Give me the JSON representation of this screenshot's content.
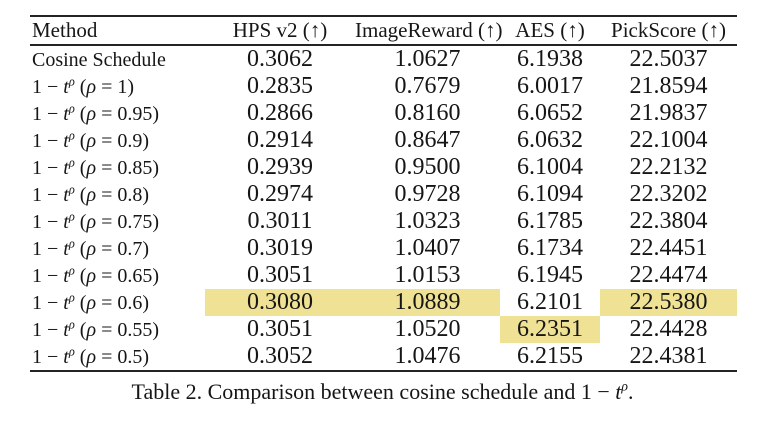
{
  "table": {
    "columns": [
      "Method",
      "HPS v2 (↑)",
      "ImageReward (↑)",
      "AES (↑)",
      "PickScore (↑)"
    ],
    "formula": {
      "prefix": "1 − ",
      "var": "t",
      "sup": "ρ",
      "open": "(",
      "eq": " = ",
      "close": ")"
    },
    "highlight_color": "#F0E295",
    "rows": [
      {
        "method": {
          "kind": "plain",
          "label": "Cosine Schedule"
        },
        "values": [
          "0.3062",
          "1.0627",
          "6.1938",
          "22.5037"
        ],
        "highlight": [
          false,
          false,
          false,
          false
        ]
      },
      {
        "method": {
          "kind": "formula",
          "rho": "1"
        },
        "values": [
          "0.2835",
          "0.7679",
          "6.0017",
          "21.8594"
        ],
        "highlight": [
          false,
          false,
          false,
          false
        ]
      },
      {
        "method": {
          "kind": "formula",
          "rho": "0.95"
        },
        "values": [
          "0.2866",
          "0.8160",
          "6.0652",
          "21.9837"
        ],
        "highlight": [
          false,
          false,
          false,
          false
        ]
      },
      {
        "method": {
          "kind": "formula",
          "rho": "0.9"
        },
        "values": [
          "0.2914",
          "0.8647",
          "6.0632",
          "22.1004"
        ],
        "highlight": [
          false,
          false,
          false,
          false
        ]
      },
      {
        "method": {
          "kind": "formula",
          "rho": "0.85"
        },
        "values": [
          "0.2939",
          "0.9500",
          "6.1004",
          "22.2132"
        ],
        "highlight": [
          false,
          false,
          false,
          false
        ]
      },
      {
        "method": {
          "kind": "formula",
          "rho": "0.8"
        },
        "values": [
          "0.2974",
          "0.9728",
          "6.1094",
          "22.3202"
        ],
        "highlight": [
          false,
          false,
          false,
          false
        ]
      },
      {
        "method": {
          "kind": "formula",
          "rho": "0.75"
        },
        "values": [
          "0.3011",
          "1.0323",
          "6.1785",
          "22.3804"
        ],
        "highlight": [
          false,
          false,
          false,
          false
        ]
      },
      {
        "method": {
          "kind": "formula",
          "rho": "0.7"
        },
        "values": [
          "0.3019",
          "1.0407",
          "6.1734",
          "22.4451"
        ],
        "highlight": [
          false,
          false,
          false,
          false
        ]
      },
      {
        "method": {
          "kind": "formula",
          "rho": "0.65"
        },
        "values": [
          "0.3051",
          "1.0153",
          "6.1945",
          "22.4474"
        ],
        "highlight": [
          false,
          false,
          false,
          false
        ]
      },
      {
        "method": {
          "kind": "formula",
          "rho": "0.6"
        },
        "values": [
          "0.3080",
          "1.0889",
          "6.2101",
          "22.5380"
        ],
        "highlight": [
          true,
          true,
          false,
          true
        ]
      },
      {
        "method": {
          "kind": "formula",
          "rho": "0.55"
        },
        "values": [
          "0.3051",
          "1.0520",
          "6.2351",
          "22.4428"
        ],
        "highlight": [
          false,
          false,
          true,
          false
        ]
      },
      {
        "method": {
          "kind": "formula",
          "rho": "0.5"
        },
        "values": [
          "0.3052",
          "1.0476",
          "6.2155",
          "22.4381"
        ],
        "highlight": [
          false,
          false,
          false,
          false
        ]
      }
    ]
  },
  "caption": {
    "prefix": "Table 2. Comparison between cosine schedule and 1 − ",
    "var": "t",
    "sup": "ρ",
    "suffix": "."
  }
}
